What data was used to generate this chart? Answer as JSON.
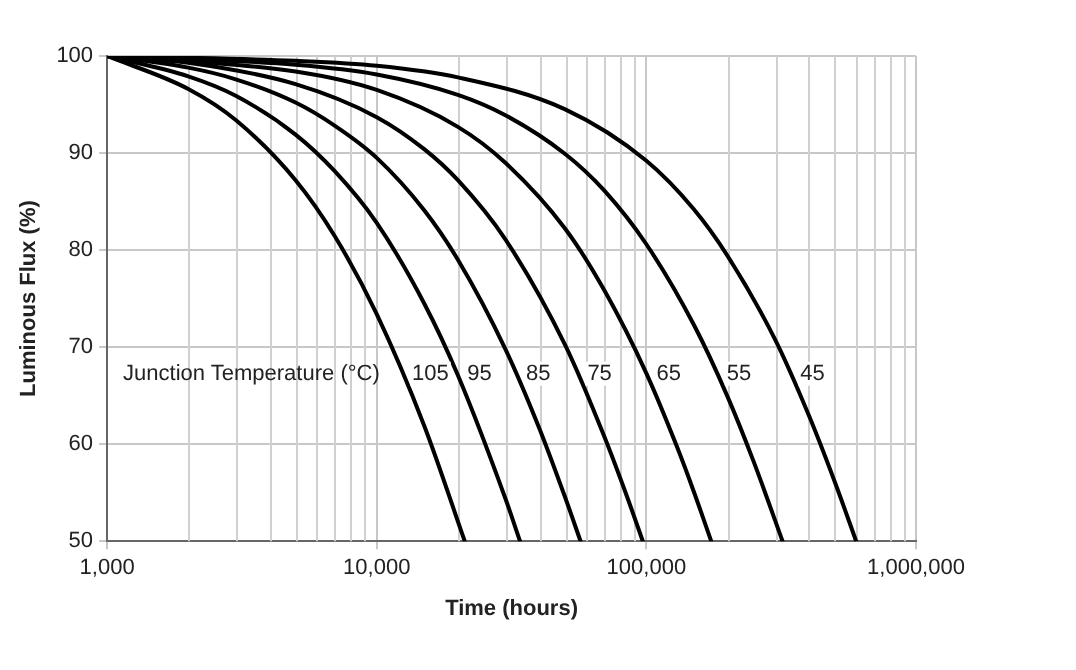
{
  "chart_data": {
    "type": "line",
    "xlabel": "Time (hours)",
    "ylabel": "Luminous Flux (%)",
    "log": "x",
    "grid": true,
    "legend": false,
    "marker": "none",
    "line_style": "solid",
    "xlim": [
      1000,
      1000000
    ],
    "xticks": [
      {
        "value": 1000,
        "label": "1,000"
      },
      {
        "value": 10000,
        "label": "10,000"
      },
      {
        "value": 100000,
        "label": "100,000"
      },
      {
        "value": 1000000,
        "label": "1,000,000"
      }
    ],
    "ylim": [
      50,
      100
    ],
    "yticks": [
      50,
      60,
      70,
      80,
      90,
      100
    ],
    "annotations": [
      "Junction Temperature (°C)"
    ],
    "series": [
      {
        "name": "105",
        "color": "#000000",
        "x": [
          1000,
          2000,
          3000,
          5000,
          7000,
          10000,
          15000,
          21200
        ],
        "values": [
          100,
          96.6,
          93.4,
          87.2,
          81.4,
          73.4,
          61.9,
          50
        ]
      },
      {
        "name": "95",
        "color": "#000000",
        "x": [
          1000,
          2000,
          3000,
          5000,
          7000,
          10000,
          15000,
          20000,
          30000,
          34000
        ],
        "values": [
          100,
          97.9,
          95.9,
          91.9,
          88.1,
          82.8,
          74.5,
          67.1,
          54.4,
          50
        ]
      },
      {
        "name": "85",
        "color": "#000000",
        "x": [
          1000,
          2000,
          3000,
          5000,
          7000,
          10000,
          15000,
          20000,
          30000,
          40000,
          50000,
          57000
        ],
        "values": [
          100,
          98.8,
          97.6,
          95.2,
          92.8,
          89.5,
          84.1,
          79.0,
          69.8,
          61.7,
          54.5,
          50
        ]
      },
      {
        "name": "75",
        "color": "#000000",
        "x": [
          1000,
          2000,
          5000,
          10000,
          15000,
          20000,
          30000,
          50000,
          70000,
          85000,
          97000
        ],
        "values": [
          100,
          99.3,
          97.1,
          93.7,
          90.4,
          87.2,
          81.1,
          70.2,
          60.7,
          54.5,
          50
        ]
      },
      {
        "name": "65",
        "color": "#000000",
        "x": [
          1000,
          5000,
          10000,
          20000,
          30000,
          50000,
          70000,
          100000,
          130000,
          150000,
          174000
        ],
        "values": [
          100,
          98.4,
          96.5,
          92.7,
          89.0,
          82.2,
          75.8,
          67.3,
          59.7,
          55.1,
          50
        ]
      },
      {
        "name": "55",
        "color": "#000000",
        "x": [
          1000,
          5000,
          10000,
          20000,
          30000,
          50000,
          70000,
          100000,
          150000,
          200000,
          250000,
          320000
        ],
        "values": [
          100,
          99.1,
          98.1,
          96.0,
          93.9,
          89.9,
          86.1,
          80.6,
          72.3,
          64.9,
          58.2,
          50
        ]
      },
      {
        "name": "45",
        "color": "#000000",
        "x": [
          1000,
          5000,
          10000,
          20000,
          50000,
          100000,
          150000,
          200000,
          300000,
          400000,
          500000,
          600000
        ],
        "values": [
          100,
          99.5,
          99.0,
          97.8,
          94.5,
          89.2,
          84.2,
          79.4,
          70.8,
          63.0,
          56.1,
          50
        ]
      }
    ]
  }
}
